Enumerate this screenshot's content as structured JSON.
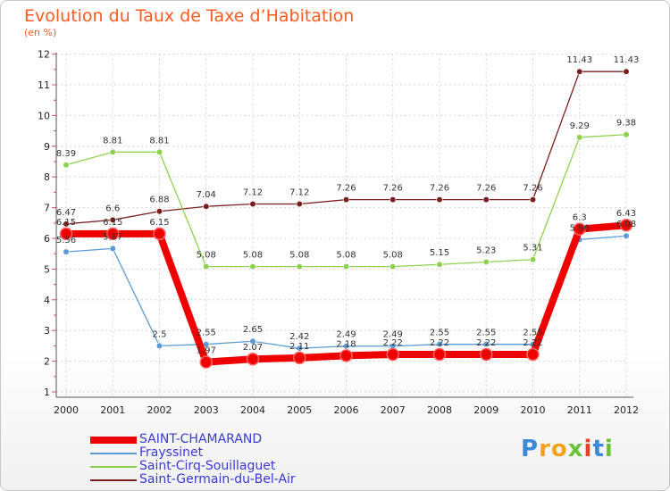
{
  "title": "Evolution du Taux de Taxe d’Habitation",
  "unit": "(en %)",
  "brand": {
    "logo_text": "Proxiti",
    "letter_colors": [
      "#3b8ad6",
      "#f2a31b",
      "#f2a31b",
      "#6ac13a",
      "#e8402b",
      "#3b8ad6",
      "#6ac13a"
    ]
  },
  "chart_data": {
    "type": "line",
    "title": "Evolution du Taux de Taxe d’Habitation",
    "ylabel": "(en %)",
    "xlabel": "",
    "ylim": [
      1,
      12
    ],
    "yticks": [
      "1",
      "2",
      "3",
      "4",
      "5",
      "6",
      "7",
      "8",
      "9",
      "10",
      "11",
      "12"
    ],
    "categories": [
      "2000",
      "2001",
      "2002",
      "2003",
      "2004",
      "2005",
      "2006",
      "2007",
      "2008",
      "2009",
      "2010",
      "2011",
      "2012"
    ],
    "grid": true,
    "series": [
      {
        "name": "Saint-Germain-du-Bel-Air",
        "color": "#7a1f1f",
        "values": [
          6.47,
          6.6,
          6.88,
          7.04,
          7.12,
          7.12,
          7.26,
          7.26,
          7.26,
          7.26,
          7.26,
          11.43,
          11.43
        ],
        "labels": [
          "6.47",
          "6.6",
          "6.88",
          "7.04",
          "7.12",
          "7.12",
          "7.26",
          "7.26",
          "7.26",
          "7.26",
          "7.26",
          "11.43",
          "11.43"
        ]
      },
      {
        "name": "Saint-Cirq-Souillaguet",
        "color": "#8fd14f",
        "values": [
          8.39,
          8.81,
          8.81,
          5.08,
          5.08,
          5.08,
          5.08,
          5.08,
          5.15,
          5.23,
          5.31,
          9.29,
          9.38
        ],
        "labels": [
          "8.39",
          "8.81",
          "8.81",
          "5.08",
          "5.08",
          "5.08",
          "5.08",
          "5.08",
          "5.15",
          "5.23",
          "5.31",
          "9.29",
          "9.38"
        ]
      },
      {
        "name": "Frayssinet",
        "color": "#5b9bd5",
        "values": [
          5.56,
          5.67,
          2.5,
          2.55,
          2.65,
          2.42,
          2.49,
          2.49,
          2.55,
          2.55,
          2.55,
          5.96,
          6.08
        ],
        "labels": [
          "5.56",
          "5.67",
          "2.5",
          "2.55",
          "2.65",
          "2.42",
          "2.49",
          "2.49",
          "2.55",
          "2.55",
          "2.55",
          "5.96",
          "6.08"
        ]
      },
      {
        "name": "SAINT-CHAMARAND",
        "color": "#ee0000",
        "values": [
          6.15,
          6.15,
          6.15,
          1.97,
          2.07,
          2.11,
          2.18,
          2.22,
          2.22,
          2.22,
          2.22,
          6.3,
          6.43
        ],
        "labels": [
          "6.15",
          "6.15",
          "6.15",
          "1.97",
          "2.07",
          "2.11",
          "2.18",
          "2.22",
          "2.22",
          "2.22",
          "2.22",
          "6.3",
          "6.43"
        ]
      }
    ],
    "legend": [
      "SAINT-CHAMARAND",
      "Frayssinet",
      "Saint-Cirq-Souillaguet",
      "Saint-Germain-du-Bel-Air"
    ]
  }
}
